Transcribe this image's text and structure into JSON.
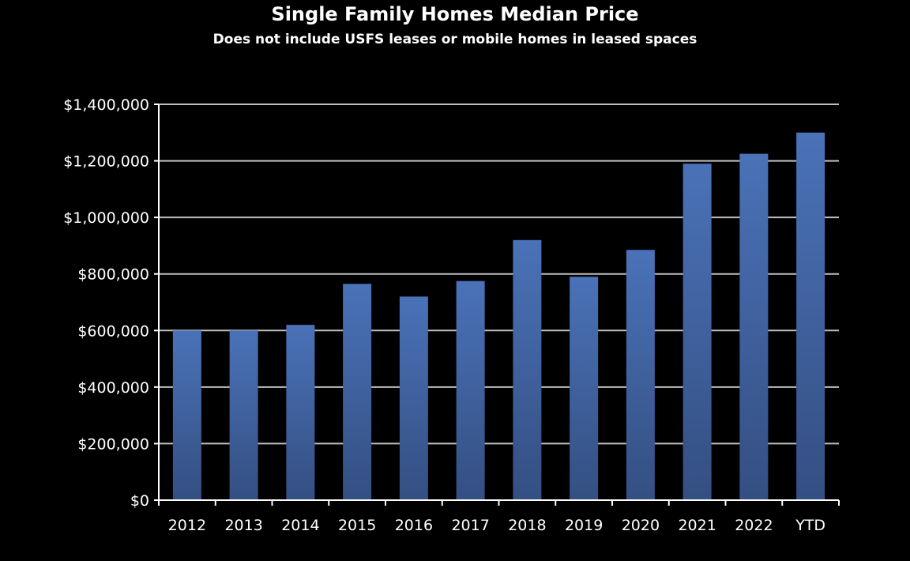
{
  "chart_data": {
    "type": "bar",
    "title": "Single Family Homes Median Price",
    "subtitle": "Does not include USFS leases or mobile homes in leased spaces",
    "xlabel": "",
    "ylabel": "",
    "categories": [
      "2012",
      "2013",
      "2014",
      "2015",
      "2016",
      "2017",
      "2018",
      "2019",
      "2020",
      "2021",
      "2022",
      "YTD"
    ],
    "values": [
      600000,
      600000,
      620000,
      765000,
      720000,
      775000,
      920000,
      790000,
      885000,
      1190000,
      1225000,
      1300000
    ],
    "ylim": [
      0,
      1400000
    ],
    "yticks": [
      0,
      200000,
      400000,
      600000,
      800000,
      1000000,
      1200000,
      1400000
    ],
    "ytick_labels": [
      "$0",
      "$200,000",
      "$400,000",
      "$600,000",
      "$800,000",
      "$1,000,000",
      "$1,200,000",
      "$1,400,000"
    ],
    "grid": true,
    "legend": "none"
  },
  "colors": {
    "background": "#000000",
    "bar_top": "#4a72b8",
    "bar_bottom": "#344f82",
    "grid": "#bfbfbf",
    "axis": "#ffffff",
    "text": "#ffffff"
  }
}
